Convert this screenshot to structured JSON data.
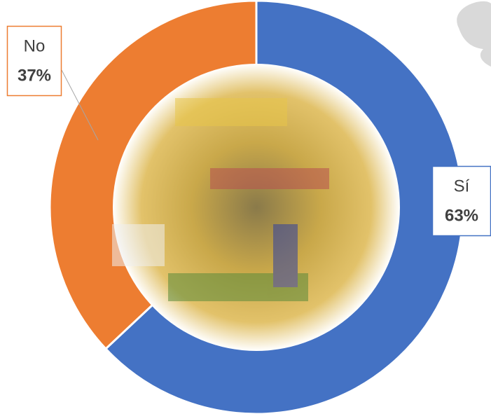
{
  "chart_data": {
    "type": "donut",
    "categories": [
      "Sí",
      "No"
    ],
    "values": [
      63,
      37
    ],
    "value_labels": [
      "63%",
      "37%"
    ],
    "colors": [
      "#4472c4",
      "#ed7d31"
    ]
  }
}
